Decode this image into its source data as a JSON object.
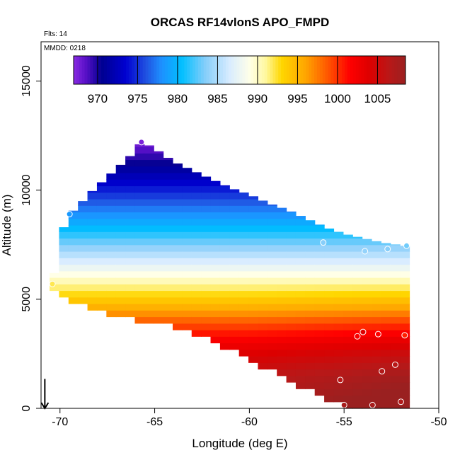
{
  "chart_data": {
    "type": "heatmap",
    "title": "ORCAS RF14vlonS APO_FMPD",
    "annotations": {
      "flights": "Flts: 14",
      "date": "MMDD: 0218"
    },
    "xlabel": "Longitude (deg E)",
    "ylabel": "Altitude (m)",
    "xlim": [
      -71,
      -50
    ],
    "ylim": [
      0,
      16800
    ],
    "x_ticks": [
      -70,
      -65,
      -60,
      -55,
      -50
    ],
    "x_tick_labels": [
      "-70",
      "-65",
      "-60",
      "-55",
      "-50"
    ],
    "y_ticks": [
      0,
      5000,
      10000,
      15000
    ],
    "y_tick_labels": [
      "0",
      "5000",
      "10000",
      "15000"
    ],
    "colorbar": {
      "range": [
        967,
        1008.5
      ],
      "ticks": [
        970,
        975,
        980,
        985,
        990,
        995,
        1000,
        1005
      ],
      "tick_labels": [
        "970",
        "975",
        "980",
        "985",
        "990",
        "995",
        "1000",
        "1005"
      ],
      "stops": [
        {
          "v": 967,
          "color": "#8a2be2"
        },
        {
          "v": 968.5,
          "color": "#5a10c8"
        },
        {
          "v": 970.5,
          "color": "#000090"
        },
        {
          "v": 973.5,
          "color": "#0000d0"
        },
        {
          "v": 976,
          "color": "#2050e0"
        },
        {
          "v": 978,
          "color": "#1e90ff"
        },
        {
          "v": 980.5,
          "color": "#00bfff"
        },
        {
          "v": 983.5,
          "color": "#87cefa"
        },
        {
          "v": 986.5,
          "color": "#d8ecff"
        },
        {
          "v": 989,
          "color": "#ffffe8"
        },
        {
          "v": 991,
          "color": "#fff8a0"
        },
        {
          "v": 993,
          "color": "#ffd700"
        },
        {
          "v": 996,
          "color": "#ffa500"
        },
        {
          "v": 999,
          "color": "#ff5000"
        },
        {
          "v": 1001.5,
          "color": "#ff0000"
        },
        {
          "v": 1004,
          "color": "#dd0000"
        },
        {
          "v": 1006.5,
          "color": "#b81818"
        },
        {
          "v": 1008.5,
          "color": "#9a2020"
        }
      ]
    },
    "field_columns": [
      {
        "lon": -70.3,
        "bottom": 5300,
        "top": 6200
      },
      {
        "lon": -70.0,
        "bottom": 5100,
        "top": 7900
      },
      {
        "lon": -69.5,
        "bottom": 4900,
        "top": 8900
      },
      {
        "lon": -69.0,
        "bottom": 4750,
        "top": 9300
      },
      {
        "lon": -68.5,
        "bottom": 4600,
        "top": 9800
      },
      {
        "lon": -68.0,
        "bottom": 4450,
        "top": 10200
      },
      {
        "lon": -67.5,
        "bottom": 4350,
        "top": 10600
      },
      {
        "lon": -67.0,
        "bottom": 4250,
        "top": 11000
      },
      {
        "lon": -66.5,
        "bottom": 4150,
        "top": 11400
      },
      {
        "lon": -66.0,
        "bottom": 4050,
        "top": 11800
      },
      {
        "lon": -65.7,
        "bottom": 4000,
        "top": 12250
      },
      {
        "lon": -65.0,
        "bottom": 3900,
        "top": 11900
      },
      {
        "lon": -64.5,
        "bottom": 3800,
        "top": 11600
      },
      {
        "lon": -64.0,
        "bottom": 3700,
        "top": 11300
      },
      {
        "lon": -63.0,
        "bottom": 3400,
        "top": 10900
      },
      {
        "lon": -62.0,
        "bottom": 3050,
        "top": 10500
      },
      {
        "lon": -61.0,
        "bottom": 2650,
        "top": 10100
      },
      {
        "lon": -60.0,
        "bottom": 2200,
        "top": 9800
      },
      {
        "lon": -59.0,
        "bottom": 1750,
        "top": 9400
      },
      {
        "lon": -58.0,
        "bottom": 1300,
        "top": 9100
      },
      {
        "lon": -57.0,
        "bottom": 900,
        "top": 8700
      },
      {
        "lon": -56.0,
        "bottom": 500,
        "top": 8300
      },
      {
        "lon": -55.0,
        "bottom": 100,
        "top": 8000
      },
      {
        "lon": -54.0,
        "bottom": 0,
        "top": 7800
      },
      {
        "lon": -53.0,
        "bottom": 0,
        "top": 7600
      },
      {
        "lon": -52.2,
        "bottom": 0,
        "top": 7500
      },
      {
        "lon": -51.9,
        "bottom": 0,
        "top": 7400
      },
      {
        "lon": -51.7,
        "bottom": 0,
        "top": 7500
      }
    ],
    "altitude_profile": [
      {
        "alt": 0,
        "value": 1007.5
      },
      {
        "alt": 1500,
        "value": 1006
      },
      {
        "alt": 2500,
        "value": 1004
      },
      {
        "alt": 3300,
        "value": 1001.5
      },
      {
        "alt": 4000,
        "value": 998.5
      },
      {
        "alt": 4600,
        "value": 995.5
      },
      {
        "alt": 5200,
        "value": 993
      },
      {
        "alt": 5800,
        "value": 990.5
      },
      {
        "alt": 6400,
        "value": 988
      },
      {
        "alt": 7000,
        "value": 985.5
      },
      {
        "alt": 7600,
        "value": 983
      },
      {
        "alt": 8200,
        "value": 980.5
      },
      {
        "alt": 8800,
        "value": 978.5
      },
      {
        "alt": 9400,
        "value": 976.5
      },
      {
        "alt": 10000,
        "value": 974.5
      },
      {
        "alt": 10600,
        "value": 972.5
      },
      {
        "alt": 11200,
        "value": 970.5
      },
      {
        "alt": 11700,
        "value": 969
      },
      {
        "alt": 12300,
        "value": 967.5
      }
    ],
    "observations": [
      {
        "lon": -65.7,
        "alt": 12200,
        "value": 967.5
      },
      {
        "lon": -69.5,
        "alt": 8900,
        "value": 978.5
      },
      {
        "lon": -70.4,
        "alt": 5700,
        "value": 992
      },
      {
        "lon": -56.1,
        "alt": 7600,
        "value": 983.5
      },
      {
        "lon": -53.9,
        "alt": 7200,
        "value": 984
      },
      {
        "lon": -52.7,
        "alt": 7300,
        "value": 983.5
      },
      {
        "lon": -51.7,
        "alt": 7450,
        "value": 983
      },
      {
        "lon": -54.0,
        "alt": 3500,
        "value": 1004
      },
      {
        "lon": -54.3,
        "alt": 3300,
        "value": 1002
      },
      {
        "lon": -53.2,
        "alt": 3400,
        "value": 1001.5
      },
      {
        "lon": -51.8,
        "alt": 3350,
        "value": 1000.5
      },
      {
        "lon": -53.0,
        "alt": 1700,
        "value": 1007
      },
      {
        "lon": -52.3,
        "alt": 2000,
        "value": 1006.5
      },
      {
        "lon": -55.2,
        "alt": 1300,
        "value": 1006.5
      },
      {
        "lon": -55.0,
        "alt": 150,
        "value": 1007.5
      },
      {
        "lon": -53.5,
        "alt": 150,
        "value": 1007.5
      },
      {
        "lon": -52.0,
        "alt": 300,
        "value": 1007
      }
    ],
    "arrow_marker": {
      "lon": -70.8,
      "alt_from": 700,
      "alt_to": 0
    },
    "grid": false,
    "legend": "colorbar-top"
  }
}
